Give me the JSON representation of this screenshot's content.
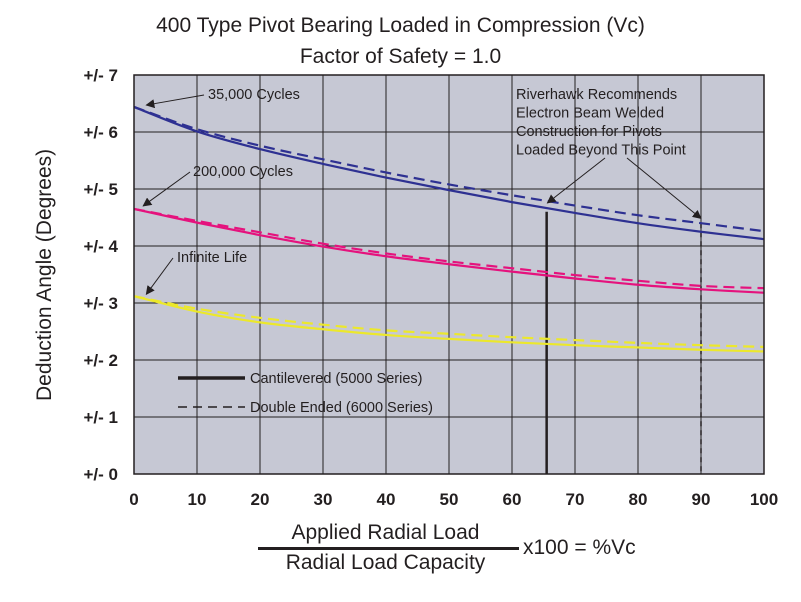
{
  "chart_data": {
    "type": "line",
    "title": "400 Type Pivot Bearing Loaded in Compression (Vc)",
    "subtitle": "Factor of Safety = 1.0",
    "ylabel": "Deduction Angle (Degrees)",
    "xlabel_numerator": "Applied Radial Load",
    "xlabel_denominator": "Radial Load Capacity",
    "xlabel_suffix": "x100 = %Vc",
    "xlim": [
      0,
      100
    ],
    "ylim": [
      0,
      7
    ],
    "xticks": [
      "0",
      "10",
      "20",
      "30",
      "40",
      "50",
      "60",
      "70",
      "80",
      "90",
      "100"
    ],
    "yticks": [
      "+/- 0",
      "+/- 1",
      "+/- 2",
      "+/- 3",
      "+/- 4",
      "+/- 5",
      "+/- 6",
      "+/- 7"
    ],
    "grid": true,
    "x": [
      0,
      10,
      20,
      30,
      40,
      50,
      60,
      70,
      80,
      90,
      100
    ],
    "series": [
      {
        "name": "35,000 Cycles - Cantilevered (5000 Series)",
        "color": "#2e3192",
        "dash": false,
        "values": [
          6.44,
          6.01,
          5.7,
          5.44,
          5.2,
          4.98,
          4.77,
          4.58,
          4.4,
          4.25,
          4.12
        ]
      },
      {
        "name": "35,000 Cycles - Double Ended (6000 Series)",
        "color": "#2e3192",
        "dash": true,
        "values": [
          6.44,
          6.05,
          5.76,
          5.52,
          5.29,
          5.08,
          4.89,
          4.71,
          4.54,
          4.4,
          4.26
        ]
      },
      {
        "name": "200,000 Cycles - Cantilevered (5000 Series)",
        "color": "#e5127d",
        "dash": false,
        "values": [
          4.65,
          4.41,
          4.19,
          3.99,
          3.82,
          3.68,
          3.55,
          3.43,
          3.32,
          3.24,
          3.18
        ]
      },
      {
        "name": "200,000 Cycles - Double Ended (6000 Series)",
        "color": "#e5127d",
        "dash": true,
        "values": [
          4.65,
          4.44,
          4.24,
          4.04,
          3.87,
          3.73,
          3.61,
          3.49,
          3.39,
          3.3,
          3.26
        ]
      },
      {
        "name": "Infinite Life - Cantilevered (5000 Series)",
        "color": "#ece82b",
        "dash": false,
        "values": [
          3.12,
          2.85,
          2.66,
          2.54,
          2.44,
          2.37,
          2.31,
          2.26,
          2.22,
          2.18,
          2.15
        ]
      },
      {
        "name": "Infinite Life - Double Ended (6000 Series)",
        "color": "#ece82b",
        "dash": true,
        "values": [
          3.12,
          2.9,
          2.74,
          2.62,
          2.52,
          2.46,
          2.4,
          2.35,
          2.3,
          2.26,
          2.23
        ]
      }
    ],
    "vlines": [
      {
        "x": 65.5,
        "ymax": 4.6,
        "dash": false
      },
      {
        "x": 90.0,
        "ymax": 4.4,
        "dash": true
      }
    ],
    "annotations": [
      {
        "text": "35,000 Cycles",
        "point": [
          1,
          6.42
        ]
      },
      {
        "text": "200,000 Cycles",
        "point": [
          0.5,
          4.65
        ]
      },
      {
        "text": "Infinite Life",
        "point": [
          1,
          3.1
        ]
      }
    ],
    "recommendation": {
      "lines": [
        "Riverhawk Recommends",
        "Electron Beam Welded",
        "Construction for Pivots",
        "Loaded Beyond This Point"
      ],
      "points": [
        [
          65.3,
          4.72
        ],
        [
          90.0,
          4.43
        ]
      ]
    },
    "legend": [
      {
        "label": "Cantilevered (5000 Series)",
        "dash": false
      },
      {
        "label": "Double Ended (6000 Series)",
        "dash": true
      }
    ],
    "plot_bg": "#c6c8d4",
    "grid_color": "#231f20"
  }
}
